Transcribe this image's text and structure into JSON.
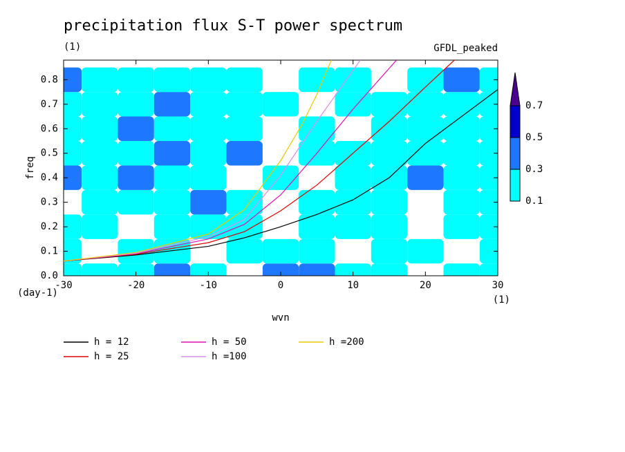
{
  "chart_data": {
    "type": "contour-line",
    "title": "precipitation flux S-T power spectrum",
    "subtitle": "(1)",
    "model_label": "GFDL_peaked",
    "x_label": "wvn",
    "y_label": "freq",
    "x_unit": "(1)",
    "y_unit": "(day-1)",
    "xlim": [
      -30,
      30
    ],
    "ylim": [
      0,
      0.88
    ],
    "xticks": [
      -30,
      -20,
      -10,
      0,
      10,
      20,
      30
    ],
    "yticks": [
      {
        "value": 0,
        "label": "0.0"
      },
      0.1,
      0.2,
      0.3,
      0.4,
      0.5,
      0.6,
      0.7,
      0.8
    ],
    "field": {
      "x": [
        -30,
        -25,
        -20,
        -15,
        -10,
        -5,
        0,
        5,
        10,
        15,
        20,
        25,
        30
      ],
      "y": [
        0,
        0.1,
        0.2,
        0.3,
        0.4,
        0.5,
        0.6,
        0.7,
        0.8
      ],
      "z": [
        [
          0.2,
          0.15,
          0.1,
          0.3,
          0.15,
          0.05,
          0.3,
          0.35,
          0.1,
          0.15,
          0.05,
          0.1,
          0.2
        ],
        [
          0.15,
          0.05,
          0.2,
          0.1,
          0.05,
          0.15,
          0.1,
          0.2,
          0.05,
          0.1,
          0.15,
          0.05,
          0.1
        ],
        [
          0.1,
          0.2,
          0.05,
          0.15,
          0.2,
          0.1,
          0.05,
          0.15,
          0.2,
          0.1,
          0.05,
          0.2,
          0.15
        ],
        [
          0.05,
          0.15,
          0.2,
          0.1,
          0.35,
          0.15,
          0.05,
          0.1,
          0.2,
          0.15,
          0.05,
          0.1,
          0.2
        ],
        [
          0.3,
          0.1,
          0.35,
          0.15,
          0.25,
          0.05,
          0.15,
          0.05,
          0.2,
          0.1,
          0.3,
          0.15,
          0.1
        ],
        [
          0.15,
          0.25,
          0.2,
          0.3,
          0.2,
          0.35,
          0.05,
          0.1,
          0.15,
          0.2,
          0.15,
          0.1,
          0.2
        ],
        [
          0.1,
          0.2,
          0.3,
          0.25,
          0.15,
          0.2,
          0.05,
          0.15,
          0.05,
          0.2,
          0.1,
          0.25,
          0.15
        ],
        [
          0.2,
          0.15,
          0.1,
          0.45,
          0.2,
          0.15,
          0.1,
          0.05,
          0.15,
          0.1,
          0.2,
          0.15,
          0.1
        ],
        [
          0.35,
          0.15,
          0.2,
          0.25,
          0.15,
          0.2,
          0.05,
          0.15,
          0.2,
          0.05,
          0.15,
          0.3,
          0.1
        ]
      ]
    },
    "levels": [
      0.1,
      0.3,
      0.5,
      0.7
    ],
    "level_colors": [
      "#00ffff",
      "#1e78ff",
      "#0000cd",
      "#4b0090"
    ],
    "series": [
      {
        "name": "h = 12",
        "color": "#000000",
        "x": [
          -30,
          -20,
          -10,
          -5,
          0,
          5,
          10,
          15,
          20,
          25,
          30
        ],
        "values": [
          0.06,
          0.085,
          0.12,
          0.155,
          0.2,
          0.25,
          0.31,
          0.4,
          0.54,
          0.65,
          0.76
        ]
      },
      {
        "name": "h = 25",
        "color": "#e00000",
        "x": [
          -30,
          -20,
          -10,
          -5,
          0,
          5,
          10,
          15,
          20,
          24
        ],
        "values": [
          0.06,
          0.088,
          0.135,
          0.18,
          0.265,
          0.37,
          0.5,
          0.63,
          0.77,
          0.88
        ]
      },
      {
        "name": "h = 50",
        "color": "#e010b0",
        "x": [
          -30,
          -20,
          -10,
          -5,
          0,
          5,
          10,
          16
        ],
        "values": [
          0.06,
          0.09,
          0.15,
          0.21,
          0.33,
          0.5,
          0.68,
          0.88
        ]
      },
      {
        "name": "h =100",
        "color": "#d890e8",
        "x": [
          -30,
          -20,
          -10,
          -5,
          0,
          5,
          11
        ],
        "values": [
          0.06,
          0.092,
          0.16,
          0.23,
          0.41,
          0.63,
          0.88
        ]
      },
      {
        "name": "h =200",
        "color": "#f0c800",
        "x": [
          -30,
          -20,
          -10,
          -5,
          0,
          3,
          5,
          7
        ],
        "values": [
          0.06,
          0.095,
          0.17,
          0.27,
          0.47,
          0.62,
          0.74,
          0.88
        ]
      }
    ]
  }
}
